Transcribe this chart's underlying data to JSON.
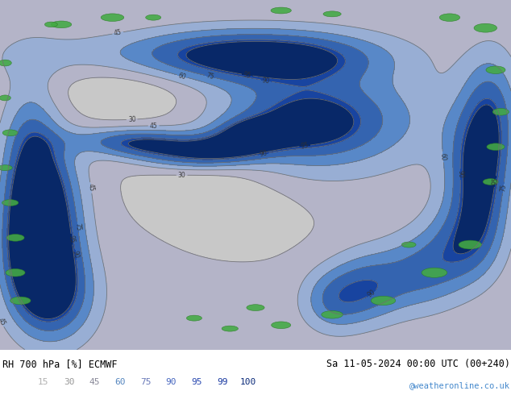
{
  "title_left": "RH 700 hPa [%] ECMWF",
  "title_right": "Sa 11-05-2024 00:00 UTC (00+240)",
  "watermark": "@weatheronline.co.uk",
  "colorbar_levels": [
    15,
    30,
    45,
    60,
    75,
    90,
    95,
    99,
    100
  ],
  "label_colors": [
    "#b0b0b0",
    "#989898",
    "#888898",
    "#5888c0",
    "#6878b8",
    "#4868c0",
    "#2848b0",
    "#1838a0",
    "#082878"
  ],
  "fill_colors": [
    "#e2e2e2",
    "#c8c8c8",
    "#b4b4c8",
    "#98aed4",
    "#5888c8",
    "#3464b0",
    "#1844a0",
    "#082868"
  ],
  "fill_levels": [
    10,
    15,
    30,
    45,
    60,
    75,
    90,
    95,
    100
  ],
  "contour_levels": [
    15,
    30,
    45,
    60,
    75,
    90,
    95
  ],
  "green_color": "#44aa44",
  "green_edge": "#2a7a24",
  "map_bg": "#c8c8c8",
  "fig_width": 6.34,
  "fig_height": 4.9,
  "dpi": 100
}
